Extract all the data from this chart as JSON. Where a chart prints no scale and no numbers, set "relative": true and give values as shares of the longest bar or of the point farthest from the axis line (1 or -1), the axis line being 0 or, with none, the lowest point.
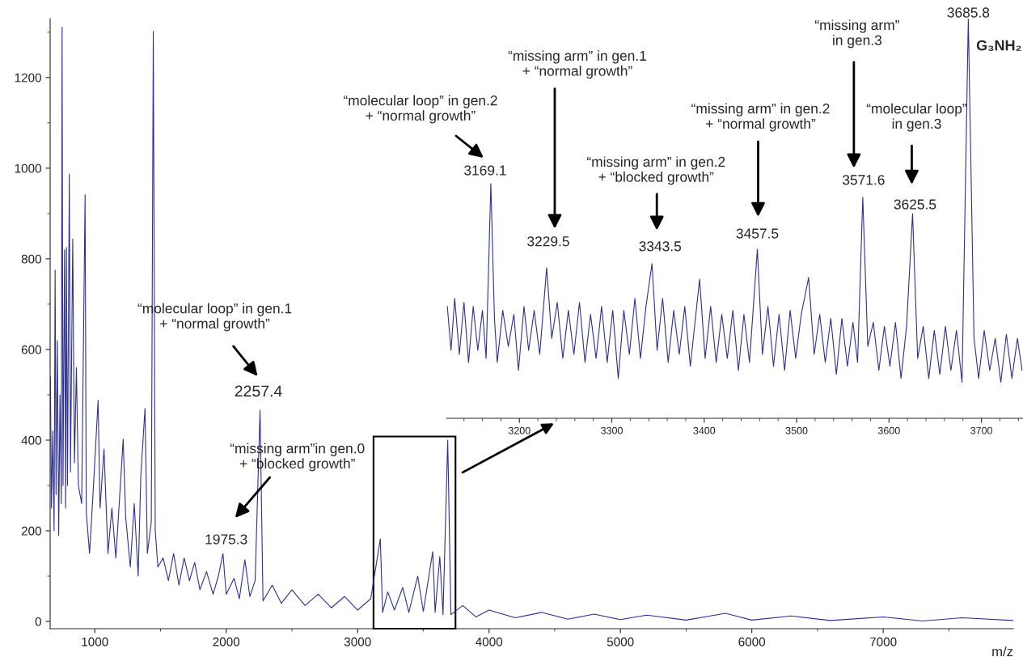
{
  "chart_data": [
    {
      "type": "line",
      "xlabel": "m/z",
      "xlim": [
        660,
        7990
      ],
      "ylim": [
        -16,
        1330
      ],
      "xticks": [
        1000,
        2000,
        3000,
        4000,
        5000,
        6000,
        7000
      ],
      "yticks": [
        0,
        200,
        400,
        600,
        800,
        1000,
        1200
      ],
      "series": [
        {
          "color": "#2e3192",
          "x": [
            662,
            670,
            680,
            690,
            698,
            705,
            715,
            725,
            735,
            745,
            751,
            758,
            770,
            778,
            784,
            792,
            806,
            815,
            832,
            845,
            860,
            875,
            900,
            926,
            935,
            960,
            990,
            1025,
            1040,
            1070,
            1100,
            1130,
            1160,
            1190,
            1216,
            1235,
            1270,
            1300,
            1330,
            1350,
            1382,
            1400,
            1430,
            1445,
            1460,
            1480,
            1520,
            1560,
            1600,
            1640,
            1680,
            1720,
            1760,
            1800,
            1850,
            1900,
            1940,
            1975.3,
            2000,
            2060,
            2100,
            2142,
            2180,
            2220,
            2257.4,
            2280,
            2350,
            2420,
            2500,
            2600,
            2700,
            2800,
            2900,
            3000,
            3100,
            3173,
            3190,
            3229.5,
            3280,
            3343.5,
            3390,
            3457.5,
            3500,
            3571.6,
            3590,
            3625.5,
            3650,
            3685.8,
            3710,
            3800,
            3900,
            4000,
            4200,
            4400,
            4600,
            4800,
            5000,
            5200,
            5500,
            5800,
            6000,
            6300,
            6600,
            7000,
            7300,
            7600,
            7990
          ],
          "values": [
            540,
            250,
            420,
            200,
            775,
            280,
            620,
            190,
            500,
            260,
            1311,
            300,
            820,
            250,
            825,
            300,
            987,
            330,
            844,
            350,
            560,
            300,
            260,
            941,
            240,
            150,
            300,
            488,
            250,
            380,
            150,
            250,
            140,
            280,
            402,
            230,
            120,
            260,
            100,
            320,
            470,
            150,
            220,
            1302,
            200,
            120,
            140,
            90,
            150,
            80,
            140,
            90,
            130,
            70,
            110,
            60,
            100,
            150,
            60,
            95,
            50,
            136,
            55,
            90,
            466,
            45,
            80,
            40,
            70,
            35,
            60,
            30,
            55,
            25,
            50,
            182,
            20,
            65,
            25,
            75,
            20,
            100,
            22,
            154,
            20,
            143,
            15,
            400,
            15,
            35,
            10,
            25,
            8,
            20,
            5,
            16,
            4,
            14,
            3,
            18,
            3,
            12,
            2,
            10,
            1,
            8,
            2
          ]
        }
      ],
      "annotations": [
        {
          "text": "2257.4",
          "x": 2257.4,
          "y": 466
        },
        "“molecular loop” in gen.1\n+ “normal growth”",
        {
          "text": "1975.3",
          "x": 1975.3,
          "y": 150
        },
        "“missing arm”in gen.0\n+ “blocked growth”"
      ]
    },
    {
      "type": "line",
      "relative": true,
      "xlim": [
        3121,
        3745
      ],
      "xticks": [
        3200,
        3300,
        3400,
        3500,
        3600,
        3700
      ],
      "series": [
        {
          "color": "#2e3192",
          "x": [
            3122,
            3126,
            3130,
            3135,
            3140,
            3145,
            3150,
            3155,
            3160,
            3164,
            3169.1,
            3173,
            3176,
            3182,
            3188,
            3194,
            3199,
            3205,
            3210,
            3216,
            3222,
            3229.5,
            3235,
            3241,
            3247,
            3253,
            3259,
            3265,
            3271,
            3277,
            3283,
            3289,
            3295,
            3301,
            3307,
            3313,
            3319,
            3325,
            3331,
            3337,
            3343.5,
            3349,
            3355,
            3361,
            3367,
            3373,
            3379,
            3385,
            3395,
            3401,
            3407,
            3413,
            3419,
            3425,
            3431,
            3437,
            3443,
            3449,
            3457.5,
            3463,
            3469,
            3475,
            3481,
            3487,
            3493,
            3499,
            3505,
            3513,
            3519,
            3525,
            3531,
            3537,
            3543,
            3549,
            3555,
            3561,
            3566,
            3571.6,
            3577,
            3583,
            3589,
            3595,
            3601,
            3607,
            3613,
            3619,
            3625.5,
            3631,
            3637,
            3643,
            3649,
            3655,
            3661,
            3667,
            3673,
            3679,
            3685.8,
            3692,
            3697,
            3703,
            3709,
            3715,
            3721,
            3727,
            3733,
            3739,
            3744
          ],
          "values": [
            0.28,
            0.17,
            0.3,
            0.16,
            0.29,
            0.14,
            0.28,
            0.17,
            0.27,
            0.15,
            0.587,
            0.25,
            0.14,
            0.27,
            0.18,
            0.26,
            0.12,
            0.28,
            0.17,
            0.27,
            0.16,
            0.377,
            0.2,
            0.29,
            0.15,
            0.27,
            0.16,
            0.29,
            0.14,
            0.26,
            0.15,
            0.28,
            0.14,
            0.27,
            0.1,
            0.27,
            0.16,
            0.3,
            0.15,
            0.28,
            0.387,
            0.17,
            0.3,
            0.14,
            0.27,
            0.16,
            0.28,
            0.13,
            0.348,
            0.15,
            0.28,
            0.14,
            0.26,
            0.15,
            0.27,
            0.12,
            0.26,
            0.14,
            0.423,
            0.16,
            0.28,
            0.13,
            0.26,
            0.12,
            0.27,
            0.15,
            0.26,
            0.352,
            0.16,
            0.26,
            0.14,
            0.25,
            0.11,
            0.25,
            0.13,
            0.24,
            0.14,
            0.553,
            0.18,
            0.24,
            0.12,
            0.23,
            0.13,
            0.24,
            0.1,
            0.23,
            0.512,
            0.15,
            0.23,
            0.1,
            0.22,
            0.11,
            0.23,
            0.12,
            0.22,
            0.09,
            1.0,
            0.2,
            0.1,
            0.22,
            0.12,
            0.2,
            0.09,
            0.21,
            0.1,
            0.2,
            0.12
          ]
        }
      ],
      "annotations": [
        {
          "text": "3169.1",
          "x": 3169.1,
          "y": 0.587
        },
        "“molecular loop” in gen.2\n+ “normal growth”",
        {
          "text": "3229.5",
          "x": 3229.5,
          "y": 0.377
        },
        "“missing arm” in gen.1\n+ “normal growth”",
        {
          "text": "3343.5",
          "x": 3343.5,
          "y": 0.387
        },
        "“missing arm” in gen.2\n+ “blocked growth”",
        {
          "text": "3457.5",
          "x": 3457.5,
          "y": 0.423
        },
        "“missing arm” in gen.2\n+ “normal growth”",
        {
          "text": "3571.6",
          "x": 3571.6,
          "y": 0.553
        },
        "“missing arm”\nin gen.3",
        {
          "text": "3625.5",
          "x": 3625.5,
          "y": 0.512
        },
        "“molecular loop”\nin gen.3",
        {
          "text": "3685.8",
          "x": 3685.8,
          "y": 1.0
        },
        "G₃NH₂"
      ]
    }
  ]
}
